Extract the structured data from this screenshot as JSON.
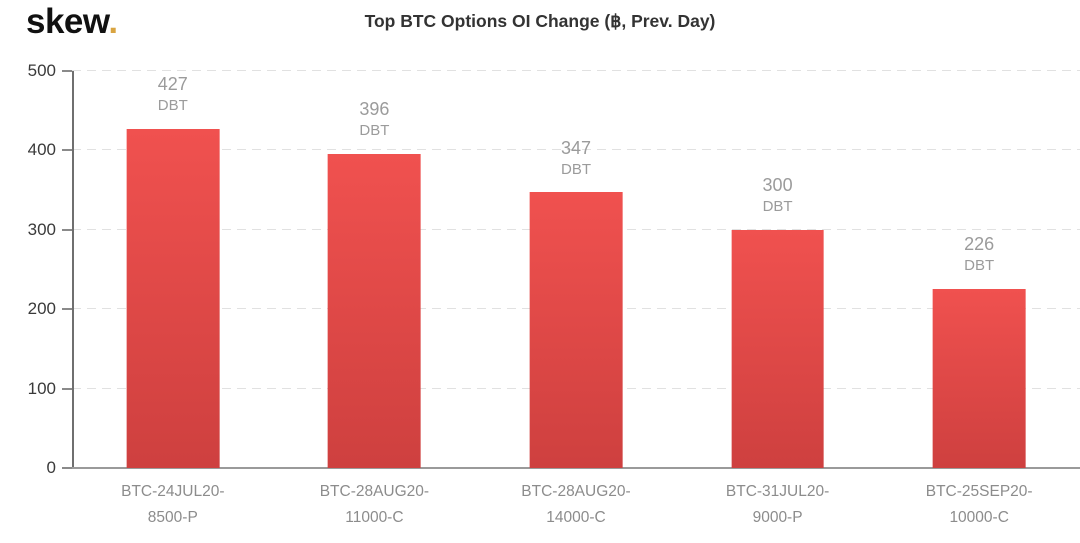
{
  "brand": {
    "logo_text": "skew",
    "logo_dot": "."
  },
  "chart_data": {
    "type": "bar",
    "title": "Top BTC Options OI Change (฿, Prev. Day)",
    "categories": [
      "BTC-24JUL20-8500-P",
      "BTC-28AUG20-11000-C",
      "BTC-28AUG20-14000-C",
      "BTC-31JUL20-9000-P",
      "BTC-25SEP20-10000-C"
    ],
    "values": [
      427,
      396,
      347,
      300,
      226
    ],
    "unit": "DBT",
    "xlabel": "",
    "ylabel": "",
    "ylim": [
      0,
      500
    ],
    "yticks": [
      0,
      100,
      200,
      300,
      400,
      500
    ],
    "yticks_display": [
      "500",
      "400",
      "300",
      "200",
      "100",
      "0"
    ],
    "grid": "horizontal-dashed",
    "legend": "none",
    "colors": {
      "bar_top": "#f0514f",
      "bar_bottom": "#ce403f",
      "logo_dot": "#d9a441",
      "grid": "#e1e1e1",
      "value_label": "#9b9b9b"
    },
    "bars": [
      {
        "value": "427",
        "unit": "DBT",
        "label_line1": "BTC-24JUL20-",
        "label_line2": "8500-P"
      },
      {
        "value": "396",
        "unit": "DBT",
        "label_line1": "BTC-28AUG20-",
        "label_line2": "11000-C"
      },
      {
        "value": "347",
        "unit": "DBT",
        "label_line1": "BTC-28AUG20-",
        "label_line2": "14000-C"
      },
      {
        "value": "300",
        "unit": "DBT",
        "label_line1": "BTC-31JUL20-",
        "label_line2": "9000-P"
      },
      {
        "value": "226",
        "unit": "DBT",
        "label_line1": "BTC-25SEP20-",
        "label_line2": "10000-C"
      }
    ]
  }
}
